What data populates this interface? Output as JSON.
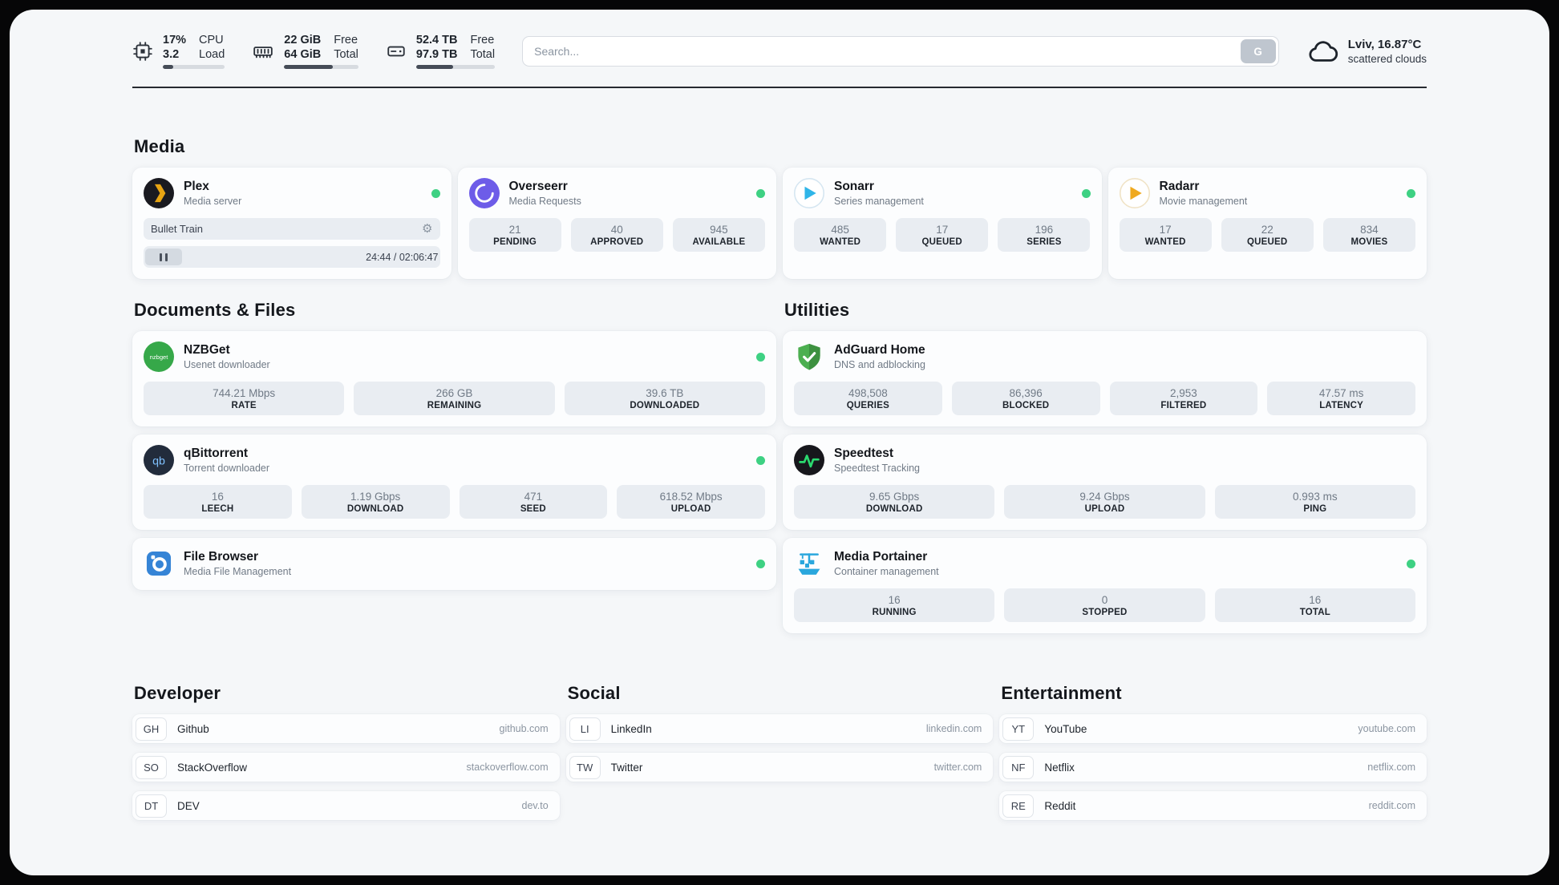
{
  "header": {
    "metrics": [
      {
        "icon": "cpu-icon",
        "primary": "17%",
        "secondary": "3.2",
        "label_top": "CPU",
        "label_bottom": "Load",
        "progress_pct": 17
      },
      {
        "icon": "ram-icon",
        "primary": "22 GiB",
        "secondary": "64 GiB",
        "label_top": "Free",
        "label_bottom": "Total",
        "progress_pct": 66
      },
      {
        "icon": "disk-icon",
        "primary": "52.4 TB",
        "secondary": "97.9 TB",
        "label_top": "Free",
        "label_bottom": "Total",
        "progress_pct": 47
      }
    ],
    "search": {
      "placeholder": "Search...",
      "button_label": "G"
    },
    "weather": {
      "location": "Lviv, 16.87°C",
      "condition": "scattered clouds"
    }
  },
  "sections": {
    "media": "Media",
    "documents": "Documents & Files",
    "utilities": "Utilities",
    "developer": "Developer",
    "social": "Social",
    "entertainment": "Entertainment"
  },
  "apps": {
    "plex": {
      "name": "Plex",
      "subtitle": "Media server",
      "player": {
        "title": "Bullet Train",
        "time": "24:44 / 02:06:47"
      }
    },
    "overseerr": {
      "name": "Overseerr",
      "subtitle": "Media Requests",
      "stats": [
        {
          "value": "21",
          "label": "PENDING"
        },
        {
          "value": "40",
          "label": "APPROVED"
        },
        {
          "value": "945",
          "label": "AVAILABLE"
        }
      ]
    },
    "sonarr": {
      "name": "Sonarr",
      "subtitle": "Series management",
      "stats": [
        {
          "value": "485",
          "label": "WANTED"
        },
        {
          "value": "17",
          "label": "QUEUED"
        },
        {
          "value": "196",
          "label": "SERIES"
        }
      ]
    },
    "radarr": {
      "name": "Radarr",
      "subtitle": "Movie management",
      "stats": [
        {
          "value": "17",
          "label": "WANTED"
        },
        {
          "value": "22",
          "label": "QUEUED"
        },
        {
          "value": "834",
          "label": "MOVIES"
        }
      ]
    },
    "nzbget": {
      "name": "NZBGet",
      "subtitle": "Usenet downloader",
      "stats": [
        {
          "value": "744.21 Mbps",
          "label": "RATE"
        },
        {
          "value": "266 GB",
          "label": "REMAINING"
        },
        {
          "value": "39.6 TB",
          "label": "DOWNLOADED"
        }
      ]
    },
    "qbittorrent": {
      "name": "qBittorrent",
      "subtitle": "Torrent downloader",
      "stats": [
        {
          "value": "16",
          "label": "LEECH"
        },
        {
          "value": "1.19 Gbps",
          "label": "DOWNLOAD"
        },
        {
          "value": "471",
          "label": "SEED"
        },
        {
          "value": "618.52 Mbps",
          "label": "UPLOAD"
        }
      ]
    },
    "filebrowser": {
      "name": "File Browser",
      "subtitle": "Media File Management"
    },
    "adguard": {
      "name": "AdGuard Home",
      "subtitle": "DNS and adblocking",
      "stats": [
        {
          "value": "498,508",
          "label": "QUERIES"
        },
        {
          "value": "86,396",
          "label": "BLOCKED"
        },
        {
          "value": "2,953",
          "label": "FILTERED"
        },
        {
          "value": "47.57 ms",
          "label": "LATENCY"
        }
      ]
    },
    "speedtest": {
      "name": "Speedtest",
      "subtitle": "Speedtest Tracking",
      "stats": [
        {
          "value": "9.65 Gbps",
          "label": "DOWNLOAD"
        },
        {
          "value": "9.24 Gbps",
          "label": "UPLOAD"
        },
        {
          "value": "0.993 ms",
          "label": "PING"
        }
      ]
    },
    "portainer": {
      "name": "Media Portainer",
      "subtitle": "Container management",
      "stats": [
        {
          "value": "16",
          "label": "RUNNING"
        },
        {
          "value": "0",
          "label": "STOPPED"
        },
        {
          "value": "16",
          "label": "TOTAL"
        }
      ]
    }
  },
  "bookmarks": {
    "developer": [
      {
        "abbr": "GH",
        "name": "Github",
        "url": "github.com"
      },
      {
        "abbr": "SO",
        "name": "StackOverflow",
        "url": "stackoverflow.com"
      },
      {
        "abbr": "DT",
        "name": "DEV",
        "url": "dev.to"
      }
    ],
    "social": [
      {
        "abbr": "LI",
        "name": "LinkedIn",
        "url": "linkedin.com"
      },
      {
        "abbr": "TW",
        "name": "Twitter",
        "url": "twitter.com"
      }
    ],
    "entertainment": [
      {
        "abbr": "YT",
        "name": "YouTube",
        "url": "youtube.com"
      },
      {
        "abbr": "NF",
        "name": "Netflix",
        "url": "netflix.com"
      },
      {
        "abbr": "RE",
        "name": "Reddit",
        "url": "reddit.com"
      }
    ]
  },
  "colors": {
    "status_green": "#3ed183",
    "accent_dark": "#454c57"
  }
}
